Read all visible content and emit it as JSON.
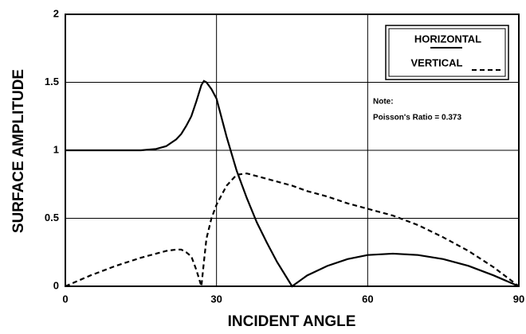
{
  "chart_data": {
    "type": "line",
    "xlabel": "INCIDENT ANGLE",
    "ylabel": "SURFACE AMPLITUDE",
    "annotations": [
      "Note:",
      "Poisson's Ratio = 0.373"
    ],
    "x": [
      0,
      5,
      10,
      15,
      18,
      20,
      22,
      23,
      24,
      25,
      26,
      27,
      27.5,
      28,
      29,
      30,
      32,
      34,
      36,
      38,
      40,
      42,
      44,
      45,
      48,
      52,
      56,
      60,
      65,
      70,
      75,
      80,
      85,
      90
    ],
    "series": [
      {
        "name": "HORIZONTAL",
        "color": "#000000",
        "dash": false,
        "values": [
          1,
          1,
          1,
          1,
          1.01,
          1.03,
          1.08,
          1.12,
          1.18,
          1.25,
          1.36,
          1.48,
          1.51,
          1.5,
          1.45,
          1.38,
          1.1,
          0.85,
          0.65,
          0.47,
          0.32,
          0.18,
          0.06,
          0,
          0.08,
          0.15,
          0.2,
          0.23,
          0.24,
          0.23,
          0.2,
          0.15,
          0.08,
          0
        ]
      },
      {
        "name": "VERTICAL",
        "color": "#000000",
        "dash": true,
        "values": [
          0,
          0.08,
          0.15,
          0.21,
          0.24,
          0.26,
          0.27,
          0.27,
          0.25,
          0.22,
          0.12,
          0,
          0.18,
          0.35,
          0.5,
          0.6,
          0.74,
          0.82,
          0.83,
          0.81,
          0.79,
          0.77,
          0.75,
          0.74,
          0.7,
          0.66,
          0.61,
          0.57,
          0.52,
          0.45,
          0.36,
          0.26,
          0.14,
          0
        ]
      }
    ],
    "xlim": [
      0,
      90
    ],
    "xticks": [
      0,
      30,
      60,
      90
    ],
    "ylim": [
      0,
      2
    ],
    "yticks": [
      0,
      0.5,
      1,
      1.5,
      2
    ],
    "grid": true
  }
}
